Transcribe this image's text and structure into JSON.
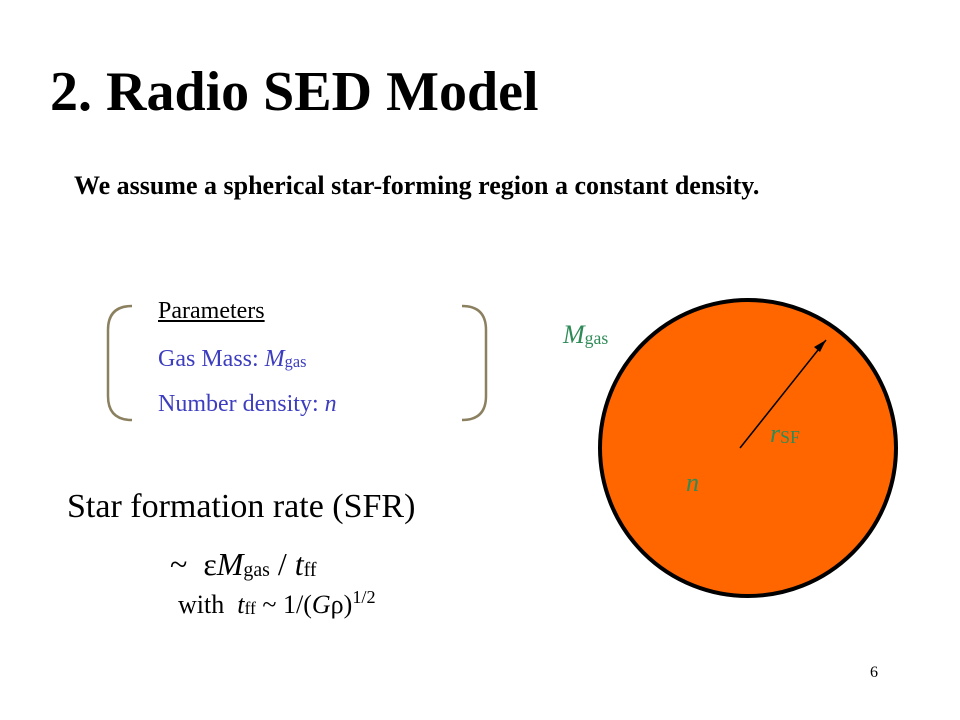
{
  "slide": {
    "title": "2. Radio SED Model",
    "intro": "We assume a spherical star-forming region a constant density.",
    "parameters": {
      "heading": "Parameters",
      "gas_mass_label": "Gas Mass: ",
      "gas_mass_symbol": "M",
      "gas_mass_subscript": "gas",
      "number_density_label": "Number density: ",
      "number_density_symbol": "n"
    },
    "diagram": {
      "mass_symbol": "M",
      "mass_subscript": "gas",
      "radius_symbol": "r",
      "radius_subscript": "SF",
      "density_symbol": "n",
      "circle_fill": "#ff6600",
      "circle_stroke": "#000000",
      "label_color": "#2e8b57"
    },
    "sfr": {
      "heading": "Star formation rate (SFR)",
      "approx": "~",
      "epsilon": "ε",
      "mass_symbol": "M",
      "mass_subscript": "gas",
      "divide": " / ",
      "time_symbol": "t",
      "time_subscript": "ff",
      "with_text": "with ",
      "tff_symbol": "t",
      "tff_subscript": "ff",
      "tff_relation": " ~ 1/(",
      "g_symbol": "G",
      "rho_symbol": "ρ",
      "close_paren": ")",
      "exponent": "1/2"
    },
    "page_number": "6",
    "colors": {
      "parameter_text": "#3d3dbf",
      "brace": "#8b8060",
      "background": "#ffffff"
    }
  }
}
